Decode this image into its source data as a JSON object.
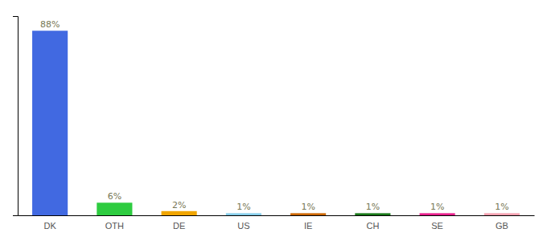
{
  "chart_data": {
    "type": "bar",
    "categories": [
      "DK",
      "OTH",
      "DE",
      "US",
      "IE",
      "CH",
      "SE",
      "GB"
    ],
    "values": [
      88,
      6,
      2,
      1,
      1,
      1,
      1,
      1
    ],
    "value_labels": [
      "88%",
      "6%",
      "2%",
      "1%",
      "1%",
      "1%",
      "1%",
      "1%"
    ],
    "colors": [
      "#4169e1",
      "#2ecc40",
      "#f0a500",
      "#87ceeb",
      "#cc6600",
      "#1a7a1a",
      "#e91e8c",
      "#f4a0b0"
    ],
    "ylim": [
      0,
      95
    ],
    "grid": false,
    "data_labels": true,
    "tick_labels": "x"
  }
}
